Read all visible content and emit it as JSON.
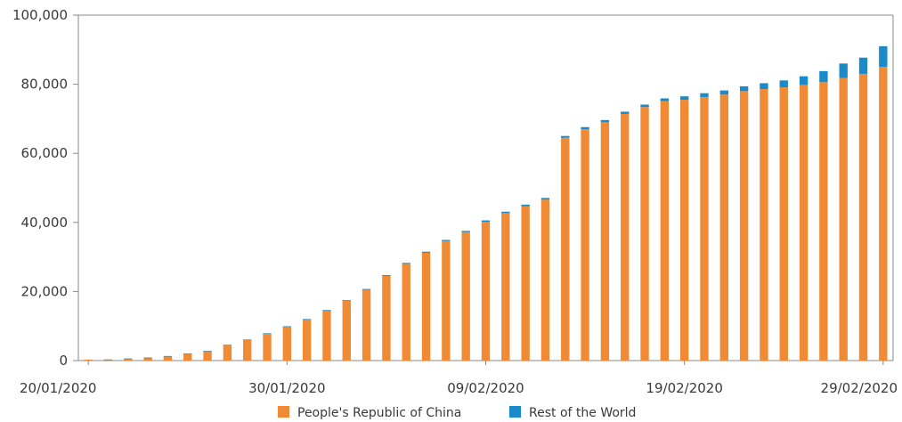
{
  "chart_data": {
    "type": "bar",
    "stacked": true,
    "x": [
      "20/01/2020",
      "21/01/2020",
      "22/01/2020",
      "23/01/2020",
      "24/01/2020",
      "25/01/2020",
      "26/01/2020",
      "27/01/2020",
      "28/01/2020",
      "29/01/2020",
      "30/01/2020",
      "31/01/2020",
      "01/02/2020",
      "02/02/2020",
      "03/02/2020",
      "04/02/2020",
      "05/02/2020",
      "06/02/2020",
      "07/02/2020",
      "08/02/2020",
      "09/02/2020",
      "10/02/2020",
      "11/02/2020",
      "12/02/2020",
      "13/02/2020",
      "14/02/2020",
      "15/02/2020",
      "16/02/2020",
      "17/02/2020",
      "18/02/2020",
      "19/02/2020",
      "20/02/2020",
      "21/02/2020",
      "22/02/2020",
      "23/02/2020",
      "24/02/2020",
      "25/02/2020",
      "26/02/2020",
      "27/02/2020",
      "28/02/2020",
      "29/02/2020"
    ],
    "x_tick_labels": [
      "20/01/2020",
      "30/01/2020",
      "09/02/2020",
      "19/02/2020",
      "29/02/2020"
    ],
    "series": [
      {
        "name": "People's Republic of China",
        "color": "#f08a34",
        "values": [
          280,
          300,
          570,
          850,
          1300,
          2000,
          2750,
          4500,
          6000,
          7800,
          9800,
          11900,
          14500,
          17300,
          20500,
          24500,
          28000,
          31200,
          34600,
          37200,
          40200,
          42700,
          44700,
          46600,
          64500,
          67000,
          69000,
          71400,
          73400,
          75100,
          75500,
          76300,
          77000,
          78000,
          78600,
          79100,
          79800,
          80600,
          81800,
          83000,
          85000
        ]
      },
      {
        "name": "Rest of the World",
        "color": "#1a8ac8",
        "values": [
          0,
          10,
          10,
          20,
          20,
          30,
          50,
          60,
          80,
          100,
          130,
          150,
          170,
          200,
          220,
          250,
          280,
          310,
          330,
          350,
          380,
          400,
          440,
          470,
          520,
          580,
          620,
          650,
          700,
          800,
          1000,
          1100,
          1200,
          1400,
          1700,
          2000,
          2500,
          3200,
          4200,
          4700,
          6000
        ]
      }
    ],
    "ylim": [
      0,
      100000
    ],
    "y_tick_labels": [
      "0",
      "20,000",
      "40,000",
      "60,000",
      "80,000",
      "100,000"
    ],
    "y_ticks": [
      0,
      20000,
      40000,
      60000,
      80000,
      100000
    ],
    "title": "",
    "xlabel": "",
    "ylabel": "",
    "grid": false,
    "legend_position": "bottom-center"
  }
}
